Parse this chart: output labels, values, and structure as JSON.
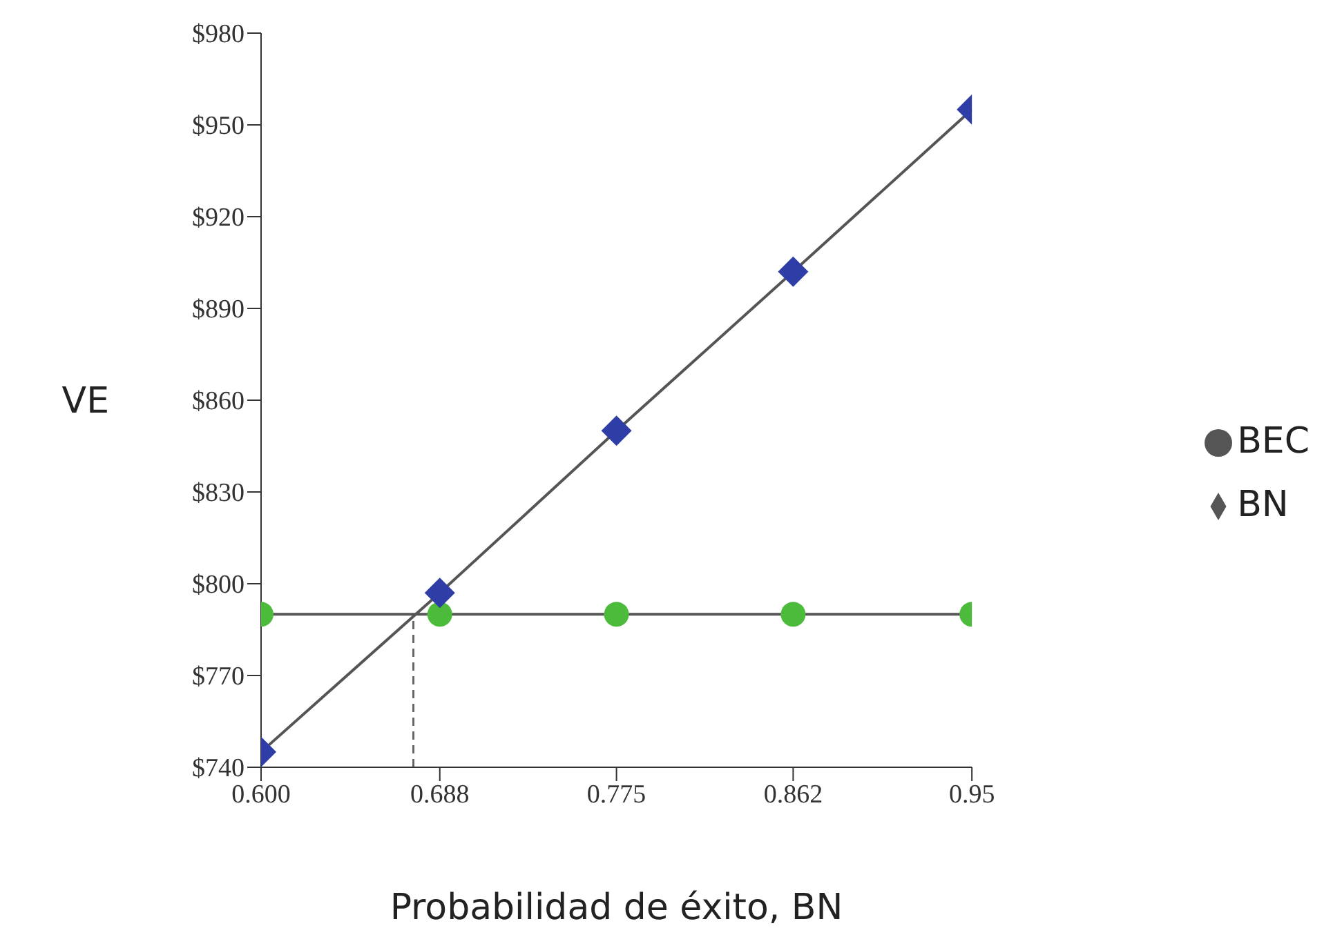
{
  "chart_data": {
    "type": "line",
    "xlabel": "Probabilidad de éxito, BN",
    "ylabel": "VE",
    "x": [
      0.6,
      0.688,
      0.775,
      0.862,
      0.95
    ],
    "series": [
      {
        "name": "BEC",
        "color": "#4cbb3c",
        "marker": "circle",
        "values": [
          790,
          790,
          790,
          790,
          790
        ]
      },
      {
        "name": "BN",
        "color": "#2e3ea6",
        "marker": "diamond",
        "values": [
          745,
          797,
          850,
          902,
          955
        ]
      }
    ],
    "xlim": [
      0.6,
      0.95
    ],
    "xticks": [
      {
        "value": 0.6,
        "label": "0.600"
      },
      0.688,
      0.775,
      0.862,
      0.95
    ],
    "ylim": [
      740,
      980
    ],
    "yticks": [
      {
        "value": 740,
        "label": "$740"
      },
      {
        "value": 770,
        "label": "$770"
      },
      {
        "value": 800,
        "label": "$800"
      },
      {
        "value": 830,
        "label": "$830"
      },
      {
        "value": 860,
        "label": "$860"
      },
      {
        "value": 890,
        "label": "$890"
      },
      {
        "value": 920,
        "label": "$920"
      },
      {
        "value": 950,
        "label": "$950"
      },
      {
        "value": 980,
        "label": "$980"
      }
    ],
    "ref_lines": [
      {
        "axis": "x",
        "value": 0.675,
        "line_style": "dashed",
        "color": "#666666"
      }
    ],
    "grid": false,
    "legend": "right"
  }
}
